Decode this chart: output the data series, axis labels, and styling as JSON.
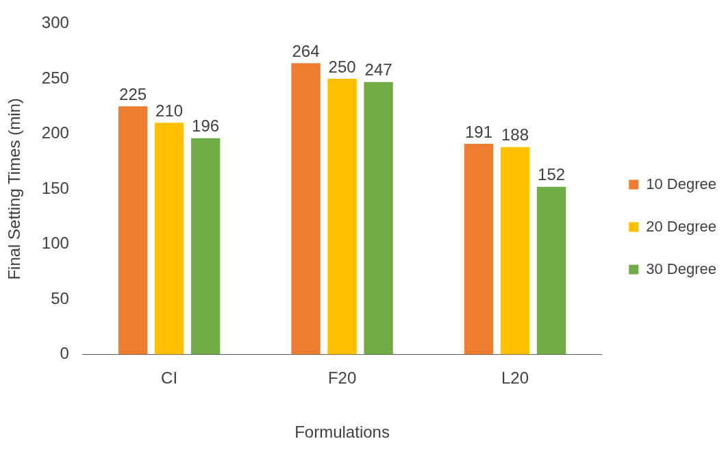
{
  "chart_data": {
    "type": "bar",
    "xlabel": "Formulations",
    "ylabel": "Final Setting Times (min)",
    "categories": [
      "CI",
      "F20",
      "L20"
    ],
    "series": [
      {
        "name": "10 Degree",
        "color": "#ed7d31",
        "values": [
          225,
          264,
          191
        ]
      },
      {
        "name": "20 Degree",
        "color": "#ffc000",
        "values": [
          210,
          250,
          188
        ]
      },
      {
        "name": "30 Degree",
        "color": "#70ad47",
        "values": [
          196,
          247,
          152
        ]
      }
    ],
    "ylim": [
      0,
      300
    ],
    "yticks": [
      0,
      50,
      100,
      150,
      200,
      250,
      300
    ],
    "grid": false,
    "legend": "right",
    "data_labels": true
  }
}
